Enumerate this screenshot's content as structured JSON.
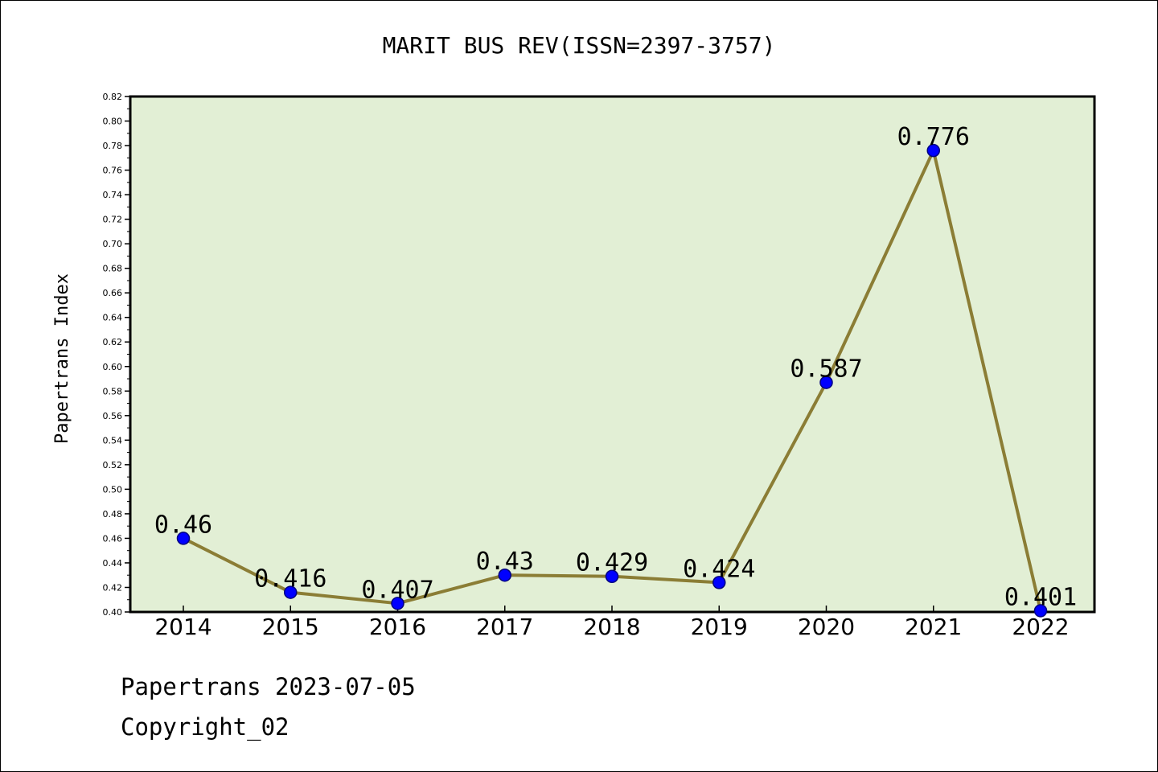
{
  "footer": {
    "line1": "Papertrans 2023-07-05",
    "line2": "Copyright_02"
  },
  "chart_data": {
    "type": "line",
    "title": "MARIT BUS REV(ISSN=2397-3757)",
    "xlabel": "",
    "ylabel": "Papertrans Index",
    "categories": [
      "2014",
      "2015",
      "2016",
      "2017",
      "2018",
      "2019",
      "2020",
      "2021",
      "2022"
    ],
    "series": [
      {
        "values": [
          0.46,
          0.416,
          0.407,
          0.43,
          0.429,
          0.424,
          0.587,
          0.776,
          0.401
        ],
        "labels": [
          "0.46",
          "0.416",
          "0.407",
          "0.43",
          "0.429",
          "0.424",
          "0.587",
          "0.776",
          "0.401"
        ]
      }
    ],
    "ylim": [
      0.4,
      0.82
    ],
    "yticks": [
      "0.40",
      "0.42",
      "0.44",
      "0.46",
      "0.48",
      "0.50",
      "0.52",
      "0.54",
      "0.56",
      "0.58",
      "0.60",
      "0.62",
      "0.64",
      "0.66",
      "0.68",
      "0.70",
      "0.72",
      "0.74",
      "0.76",
      "0.78",
      "0.80",
      "0.82"
    ],
    "grid": false,
    "colors": {
      "plot_background": "#e2efd5",
      "line": "#8b7d35",
      "marker": "#0000ff",
      "marker_edge": "#000080"
    }
  }
}
